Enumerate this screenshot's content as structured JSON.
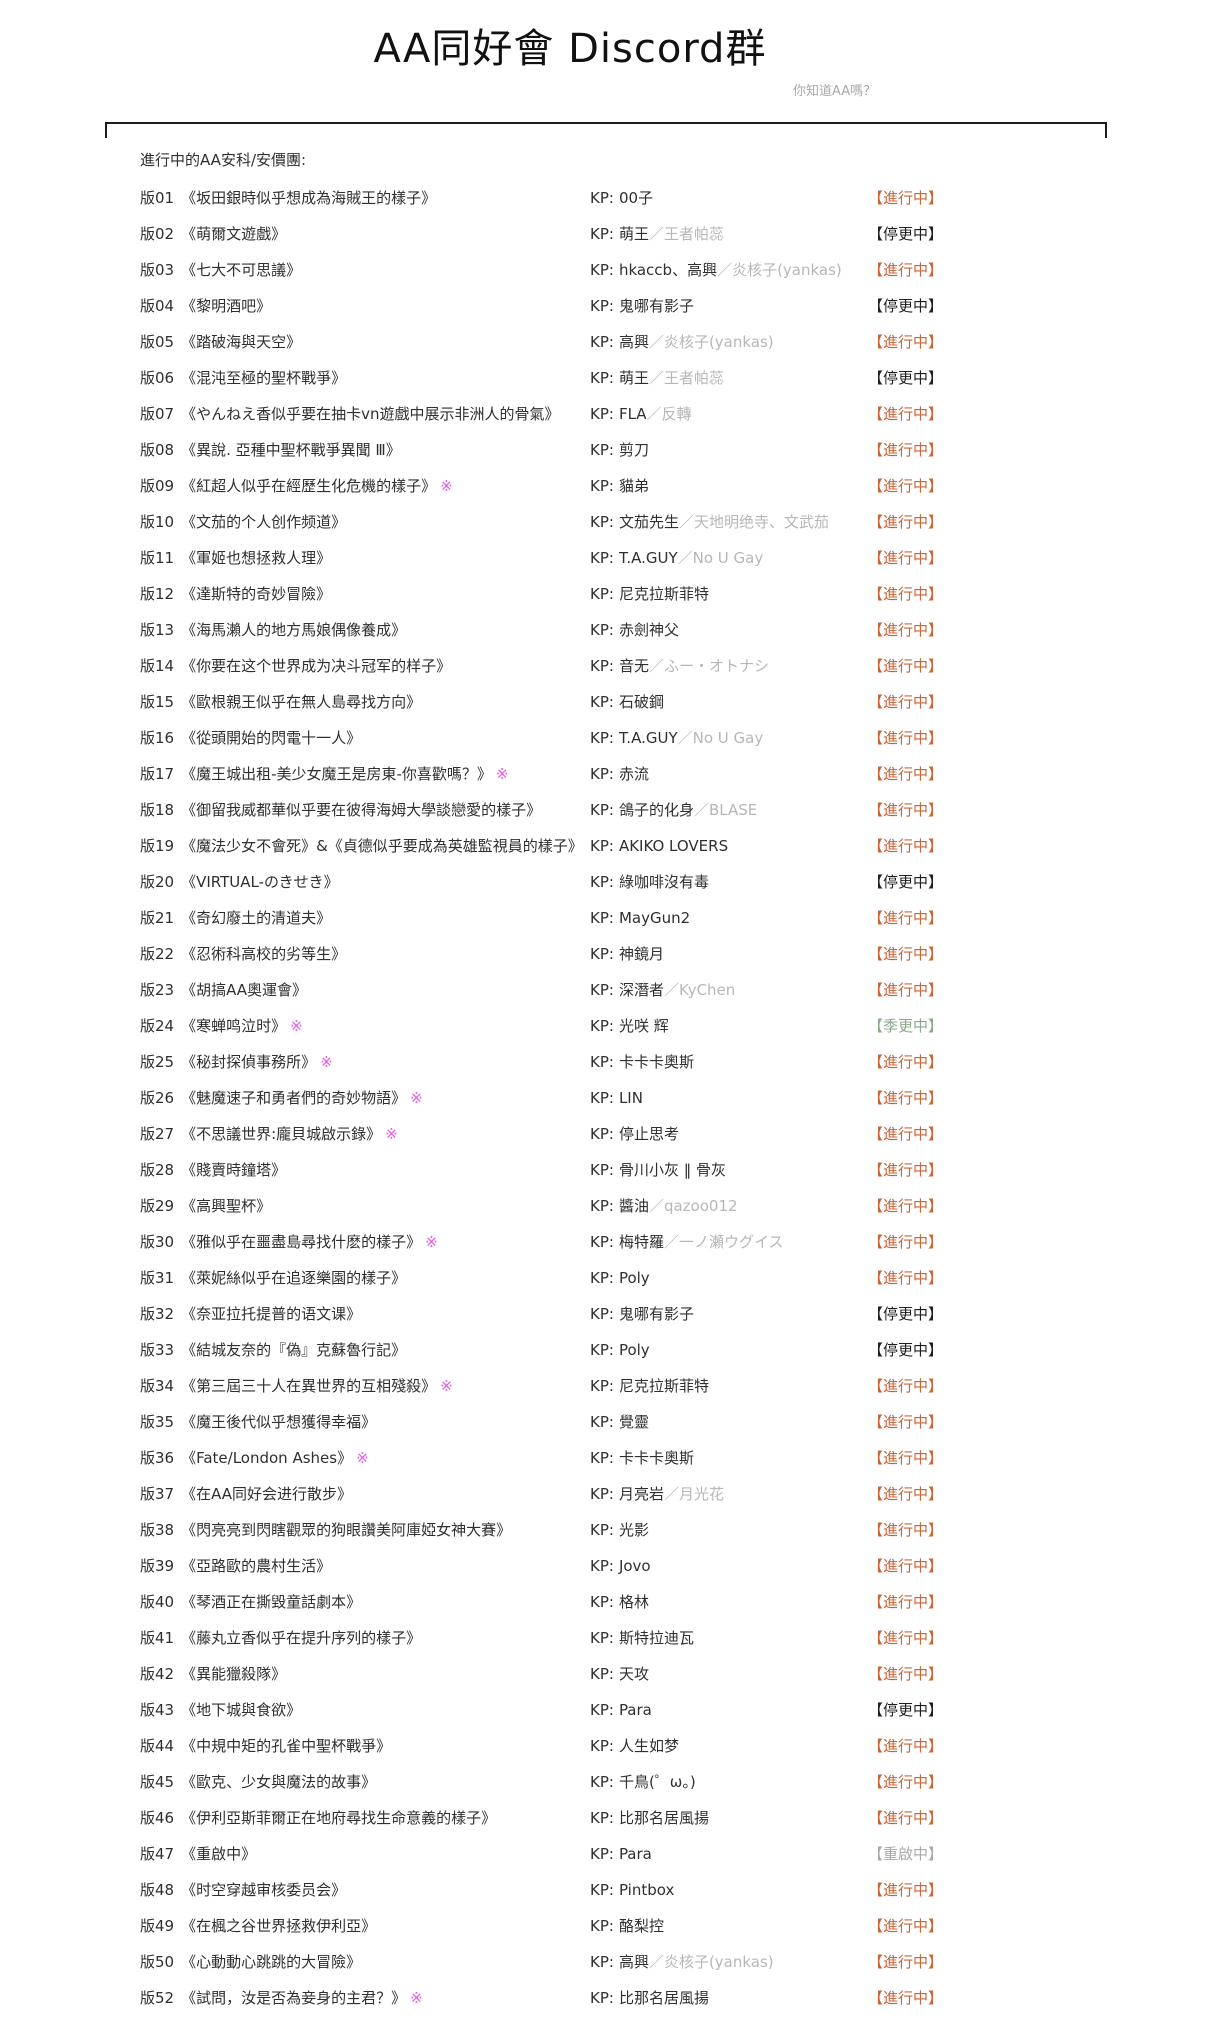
{
  "header": {
    "title": "AA同好會 Discord群",
    "subtitle": "你知道AA嗎？"
  },
  "list": {
    "section_label": "進行中的AA安科/安價團:",
    "kp_label": "KP:",
    "marker_glyph": "※",
    "colors": {
      "ongoing": "#cb6437",
      "paused": "#1f1f1f",
      "seasonal": "#8ca98b",
      "restarting": "#a9a9a9",
      "marker": "#e25ce2",
      "kp_alt": "#b7b7b7"
    },
    "rows": [
      {
        "no": "版01",
        "title": "《坂田銀時似乎想成為海賊王的樣子》",
        "kp": "00子",
        "kp_alt": "",
        "status": "【進行中】",
        "status_key": "ongoing",
        "star": false
      },
      {
        "no": "版02",
        "title": "《萌爾文遊戲》",
        "kp": "萌王",
        "kp_alt": "／王者帕蕊",
        "status": "【停更中】",
        "status_key": "paused",
        "star": false
      },
      {
        "no": "版03",
        "title": "《七大不可思議》",
        "kp": "hkaccb、高興",
        "kp_alt": "／炎核子(yankas)",
        "status": "【進行中】",
        "status_key": "ongoing",
        "star": false
      },
      {
        "no": "版04",
        "title": "《黎明酒吧》",
        "kp": "鬼哪有影子",
        "kp_alt": "",
        "status": "【停更中】",
        "status_key": "paused",
        "star": false
      },
      {
        "no": "版05",
        "title": "《踏破海與天空》",
        "kp": "高興",
        "kp_alt": "／炎核子(yankas)",
        "status": "【進行中】",
        "status_key": "ongoing",
        "star": false
      },
      {
        "no": "版06",
        "title": "《混沌至極的聖杯戰爭》",
        "kp": "萌王",
        "kp_alt": "／王者帕蕊",
        "status": "【停更中】",
        "status_key": "paused",
        "star": false
      },
      {
        "no": "版07",
        "title": "《やんねえ香似乎要在抽卡vn遊戲中展示非洲人的骨氣》",
        "kp": "FLA",
        "kp_alt": "／反轉",
        "status": "【進行中】",
        "status_key": "ongoing",
        "star": false
      },
      {
        "no": "版08",
        "title": "《異說. 亞種中聖杯戰爭異聞 Ⅲ》",
        "kp": "剪刀",
        "kp_alt": "",
        "status": "【進行中】",
        "status_key": "ongoing",
        "star": false
      },
      {
        "no": "版09",
        "title": "《紅超人似乎在經歷生化危機的樣子》",
        "kp": "貓弟",
        "kp_alt": "",
        "status": "【進行中】",
        "status_key": "ongoing",
        "star": true
      },
      {
        "no": "版10",
        "title": "《文茄的个人创作频道》",
        "kp": "文茄先生",
        "kp_alt": "／天地明绝寺、文武茄",
        "status": "【進行中】",
        "status_key": "ongoing",
        "star": false
      },
      {
        "no": "版11",
        "title": "《軍姬也想拯救人理》",
        "kp": "T.A.GUY",
        "kp_alt": "／No U Gay",
        "status": "【進行中】",
        "status_key": "ongoing",
        "star": false
      },
      {
        "no": "版12",
        "title": "《達斯特的奇妙冒險》",
        "kp": "尼克拉斯菲特",
        "kp_alt": "",
        "status": "【進行中】",
        "status_key": "ongoing",
        "star": false
      },
      {
        "no": "版13",
        "title": "《海馬瀨人的地方馬娘偶像養成》",
        "kp": "赤劍神父",
        "kp_alt": "",
        "status": "【進行中】",
        "status_key": "ongoing",
        "star": false
      },
      {
        "no": "版14",
        "title": "《你要在这个世界成为决斗冠军的样子》",
        "kp": "音无",
        "kp_alt": "／ふー・オトナシ",
        "status": "【進行中】",
        "status_key": "ongoing",
        "star": false
      },
      {
        "no": "版15",
        "title": "《歐根親王似乎在無人島尋找方向》",
        "kp": "石破鋼",
        "kp_alt": "",
        "status": "【進行中】",
        "status_key": "ongoing",
        "star": false
      },
      {
        "no": "版16",
        "title": "《從頭開始的閃電十一人》",
        "kp": "T.A.GUY",
        "kp_alt": "／No U Gay",
        "status": "【進行中】",
        "status_key": "ongoing",
        "star": false
      },
      {
        "no": "版17",
        "title": "《魔王城出租-美少女魔王是房東-你喜歡嗎？》",
        "kp": "赤流",
        "kp_alt": "",
        "status": "【進行中】",
        "status_key": "ongoing",
        "star": true
      },
      {
        "no": "版18",
        "title": "《御留我威都華似乎要在彼得海姆大學談戀愛的樣子》",
        "kp": "鴿子的化身",
        "kp_alt": "／BLASE",
        "status": "【進行中】",
        "status_key": "ongoing",
        "star": false
      },
      {
        "no": "版19",
        "title": "《魔法少女不會死》&《貞德似乎要成為英雄監視員的樣子》",
        "kp": "AKIKO LOVERS",
        "kp_alt": "",
        "status": "【進行中】",
        "status_key": "ongoing",
        "star": false
      },
      {
        "no": "版20",
        "title": "《VIRTUAL-のきせき》",
        "kp": "綠咖啡沒有毒",
        "kp_alt": "",
        "status": "【停更中】",
        "status_key": "paused",
        "star": false
      },
      {
        "no": "版21",
        "title": "《奇幻廢土的清道夫》",
        "kp": "MayGun2",
        "kp_alt": "",
        "status": "【進行中】",
        "status_key": "ongoing",
        "star": false
      },
      {
        "no": "版22",
        "title": "《忍術科高校的劣等生》",
        "kp": "神鏡月",
        "kp_alt": "",
        "status": "【進行中】",
        "status_key": "ongoing",
        "star": false
      },
      {
        "no": "版23",
        "title": "《胡搞AA奧運會》",
        "kp": "深潛者",
        "kp_alt": "／KyChen",
        "status": "【進行中】",
        "status_key": "ongoing",
        "star": false
      },
      {
        "no": "版24",
        "title": "《寒蝉鸣泣时》",
        "kp": "光咲 辉",
        "kp_alt": "",
        "status": "【季更中】",
        "status_key": "seasonal",
        "star": true
      },
      {
        "no": "版25",
        "title": "《秘封探偵事務所》",
        "kp": "卡卡卡奧斯",
        "kp_alt": "",
        "status": "【進行中】",
        "status_key": "ongoing",
        "star": true
      },
      {
        "no": "版26",
        "title": "《魅魔速子和勇者們的奇妙物語》",
        "kp": "LIN",
        "kp_alt": "",
        "status": "【進行中】",
        "status_key": "ongoing",
        "star": true
      },
      {
        "no": "版27",
        "title": "《不思議世界:龐貝城啟示錄》",
        "kp": "停止思考",
        "kp_alt": "",
        "status": "【進行中】",
        "status_key": "ongoing",
        "star": true
      },
      {
        "no": "版28",
        "title": "《賤賣時鐘塔》",
        "kp": "骨川小灰 ‖ 骨灰",
        "kp_alt": "",
        "status": "【進行中】",
        "status_key": "ongoing",
        "star": false
      },
      {
        "no": "版29",
        "title": "《高興聖杯》",
        "kp": "醬油",
        "kp_alt": "／qazoo012",
        "status": "【進行中】",
        "status_key": "ongoing",
        "star": false
      },
      {
        "no": "版30",
        "title": "《雅似乎在噩盡島尋找什麽的樣子》",
        "kp": "梅特羅",
        "kp_alt": "／一ノ瀬ウグイス",
        "status": "【進行中】",
        "status_key": "ongoing",
        "star": true
      },
      {
        "no": "版31",
        "title": "《萊妮絲似乎在追逐樂園的樣子》",
        "kp": "Poly",
        "kp_alt": "",
        "status": "【進行中】",
        "status_key": "ongoing",
        "star": false
      },
      {
        "no": "版32",
        "title": "《奈亚拉托提普的语文课》",
        "kp": "鬼哪有影子",
        "kp_alt": "",
        "status": "【停更中】",
        "status_key": "paused",
        "star": false
      },
      {
        "no": "版33",
        "title": "《結城友奈的『偽』克蘇魯行記》",
        "kp": "Poly",
        "kp_alt": "",
        "status": "【停更中】",
        "status_key": "paused",
        "star": false
      },
      {
        "no": "版34",
        "title": "《第三屆三十人在異世界的互相殘殺》",
        "kp": "尼克拉斯菲特",
        "kp_alt": "",
        "status": "【進行中】",
        "status_key": "ongoing",
        "star": true
      },
      {
        "no": "版35",
        "title": "《魔王後代似乎想獲得幸福》",
        "kp": "覺靈",
        "kp_alt": "",
        "status": "【進行中】",
        "status_key": "ongoing",
        "star": false
      },
      {
        "no": "版36",
        "title": "《Fate/London Ashes》",
        "kp": "卡卡卡奧斯",
        "kp_alt": "",
        "status": "【進行中】",
        "status_key": "ongoing",
        "star": true
      },
      {
        "no": "版37",
        "title": "《在AA同好会进行散步》",
        "kp": "月亮岩",
        "kp_alt": "／月光花",
        "status": "【進行中】",
        "status_key": "ongoing",
        "star": false
      },
      {
        "no": "版38",
        "title": "《閃亮亮到閃瞎觀眾的狗眼讚美阿庫婭女神大賽》",
        "kp": "光影",
        "kp_alt": "",
        "status": "【進行中】",
        "status_key": "ongoing",
        "star": false
      },
      {
        "no": "版39",
        "title": "《亞路歐的農村生活》",
        "kp": "Jovo",
        "kp_alt": "",
        "status": "【進行中】",
        "status_key": "ongoing",
        "star": false
      },
      {
        "no": "版40",
        "title": "《琴酒正在撕毀童話劇本》",
        "kp": "格林",
        "kp_alt": "",
        "status": "【進行中】",
        "status_key": "ongoing",
        "star": false
      },
      {
        "no": "版41",
        "title": "《藤丸立香似乎在提升序列的樣子》",
        "kp": "斯特拉迪瓦",
        "kp_alt": "",
        "status": "【進行中】",
        "status_key": "ongoing",
        "star": false
      },
      {
        "no": "版42",
        "title": "《異能獵殺隊》",
        "kp": "天攻",
        "kp_alt": "",
        "status": "【進行中】",
        "status_key": "ongoing",
        "star": false
      },
      {
        "no": "版43",
        "title": "《地下城與食欲》",
        "kp": "Para",
        "kp_alt": "",
        "status": "【停更中】",
        "status_key": "paused",
        "star": false
      },
      {
        "no": "版44",
        "title": "《中規中矩的孔雀中聖杯戰爭》",
        "kp": "人生如梦",
        "kp_alt": "",
        "status": "【進行中】",
        "status_key": "ongoing",
        "star": false
      },
      {
        "no": "版45",
        "title": "《歐克、少女與魔法的故事》",
        "kp": "千鳥(゜ω。)",
        "kp_alt": "",
        "status": "【進行中】",
        "status_key": "ongoing",
        "star": false
      },
      {
        "no": "版46",
        "title": "《伊利亞斯菲爾正在地府尋找生命意義的樣子》",
        "kp": "比那名居風揚",
        "kp_alt": "",
        "status": "【進行中】",
        "status_key": "ongoing",
        "star": false
      },
      {
        "no": "版47",
        "title": "《重啟中》",
        "kp": "Para",
        "kp_alt": "",
        "status": "【重啟中】",
        "status_key": "restarting",
        "star": false
      },
      {
        "no": "版48",
        "title": "《时空穿越审核委员会》",
        "kp": "Pintbox",
        "kp_alt": "",
        "status": "【進行中】",
        "status_key": "ongoing",
        "star": false
      },
      {
        "no": "版49",
        "title": "《在楓之谷世界拯救伊利亞》",
        "kp": "酪梨控",
        "kp_alt": "",
        "status": "【進行中】",
        "status_key": "ongoing",
        "star": false
      },
      {
        "no": "版50",
        "title": "《心動動心跳跳的大冒險》",
        "kp": "高興",
        "kp_alt": "／炎核子(yankas)",
        "status": "【進行中】",
        "status_key": "ongoing",
        "star": false
      },
      {
        "no": "版52",
        "title": "《試問，汝是否為妾身的主君？》",
        "kp": "比那名居風揚",
        "kp_alt": "",
        "status": "【進行中】",
        "status_key": "ongoing",
        "star": true
      }
    ]
  }
}
